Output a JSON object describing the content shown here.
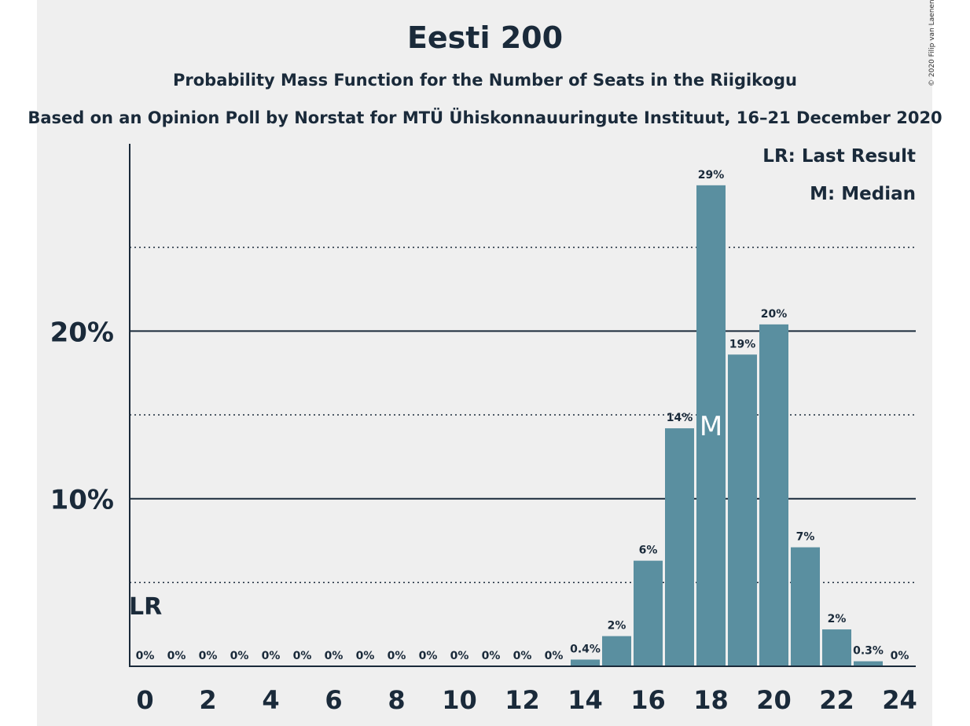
{
  "title": "Eesti 200",
  "subtitle": "Probability Mass Function for the Number of Seats in the Riigikogu",
  "caption": "Based on an Opinion Poll by Norstat for MTÜ Ühiskonnauuringute Instituut, 16–21 December 2020",
  "copyright": "© 2020 Filip van Laenen",
  "legend": {
    "lr": "LR: Last Result",
    "m": "M: Median"
  },
  "markers": {
    "last_result_label": "LR",
    "last_result_seats": 0,
    "median_label": "M",
    "median_seats": 18
  },
  "colors": {
    "bar": "#5a8fa0",
    "panel": "#efefef",
    "text": "#1a2a3a"
  },
  "chart_data": {
    "type": "bar",
    "title": "Eesti 200",
    "xlabel": "",
    "ylabel": "",
    "x": [
      0,
      1,
      2,
      3,
      4,
      5,
      6,
      7,
      8,
      9,
      10,
      11,
      12,
      13,
      14,
      15,
      16,
      17,
      18,
      19,
      20,
      21,
      22,
      23,
      24
    ],
    "values": [
      0,
      0,
      0,
      0,
      0,
      0,
      0,
      0,
      0,
      0,
      0,
      0,
      0,
      0,
      0.4,
      1.8,
      6.3,
      14.2,
      28.7,
      18.6,
      20.4,
      7.1,
      2.2,
      0.3,
      0
    ],
    "value_labels": [
      "0%",
      "0%",
      "0%",
      "0%",
      "0%",
      "0%",
      "0%",
      "0%",
      "0%",
      "0%",
      "0%",
      "0%",
      "0%",
      "0%",
      "0.4%",
      "2%",
      "6%",
      "14%",
      "29%",
      "19%",
      "20%",
      "7%",
      "2%",
      "0.3%",
      "0%"
    ],
    "x_ticks": [
      0,
      2,
      4,
      6,
      8,
      10,
      12,
      14,
      16,
      18,
      20,
      22,
      24
    ],
    "y_ticks_labeled": [
      10,
      20
    ],
    "y_tick_labels": [
      "10%",
      "20%"
    ],
    "y_gridlines_dotted": [
      5,
      15,
      25
    ],
    "ylim": [
      0,
      31.3
    ],
    "grid": true,
    "legend_position": "top-right"
  }
}
